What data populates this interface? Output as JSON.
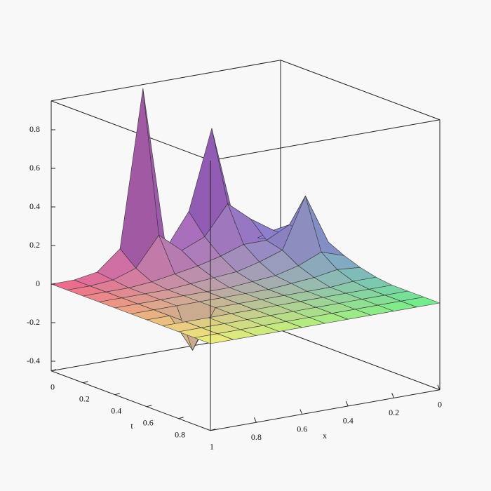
{
  "chart_data": {
    "type": "surface",
    "x_label": "x",
    "t_label": "t",
    "x": [
      0,
      0.1,
      0.2,
      0.3,
      0.4,
      0.5,
      0.6,
      0.7,
      0.8,
      0.9,
      1
    ],
    "t": [
      0,
      0.1,
      0.2,
      0.3,
      0.4,
      0.5,
      0.6,
      0.7,
      0.8,
      0.9,
      1
    ],
    "z": [
      [
        0.02,
        0.05,
        0.15,
        0.66,
        0.25,
        0.08,
        0.93,
        0.12,
        0.02,
        0,
        0
      ],
      [
        0.05,
        0.12,
        0.2,
        0.3,
        0.15,
        0.1,
        0.2,
        0.05,
        0.01,
        0,
        0
      ],
      [
        0.08,
        0.18,
        0.12,
        0.12,
        0.08,
        0.05,
        0.03,
        0.01,
        0,
        0,
        0
      ],
      [
        0.1,
        0.36,
        0.1,
        0.06,
        0.03,
        0.02,
        0.01,
        0,
        0,
        0,
        0
      ],
      [
        0.06,
        0.1,
        0.05,
        0.02,
        0.01,
        0,
        0,
        0,
        0,
        0,
        0
      ],
      [
        0.03,
        0.04,
        0.02,
        0.01,
        0,
        0,
        0,
        0,
        0,
        0,
        0
      ],
      [
        0.01,
        0.01,
        0,
        0,
        0,
        0,
        0,
        0,
        -0.2,
        0,
        0
      ],
      [
        0,
        0,
        0,
        0,
        0,
        0,
        0,
        0,
        0,
        0,
        0
      ],
      [
        0,
        0,
        0,
        0,
        0,
        0,
        0,
        0,
        0,
        0,
        0
      ],
      [
        0,
        0,
        0,
        0,
        0,
        0,
        0,
        0,
        0,
        0,
        0
      ],
      [
        0,
        0,
        0,
        0,
        0,
        0,
        0,
        0,
        0,
        0,
        0
      ]
    ],
    "xlim": [
      0,
      1
    ],
    "tlim": [
      0,
      1
    ],
    "zlim": [
      -0.45,
      0.95
    ],
    "xticks": [
      0,
      0.2,
      0.4,
      0.6,
      0.8
    ],
    "tticks": [
      0,
      0.2,
      0.4,
      0.6,
      0.8,
      1
    ],
    "zticks": [
      -0.4,
      -0.2,
      0,
      0.2,
      0.4,
      0.6,
      0.8
    ],
    "corner_colors": {
      "x0t0": "#8a86ff",
      "x1t0": "#f06488",
      "x1t1": "#f0f07a",
      "x0t1": "#6cf088"
    },
    "peak_color": "#7a3c9a"
  }
}
